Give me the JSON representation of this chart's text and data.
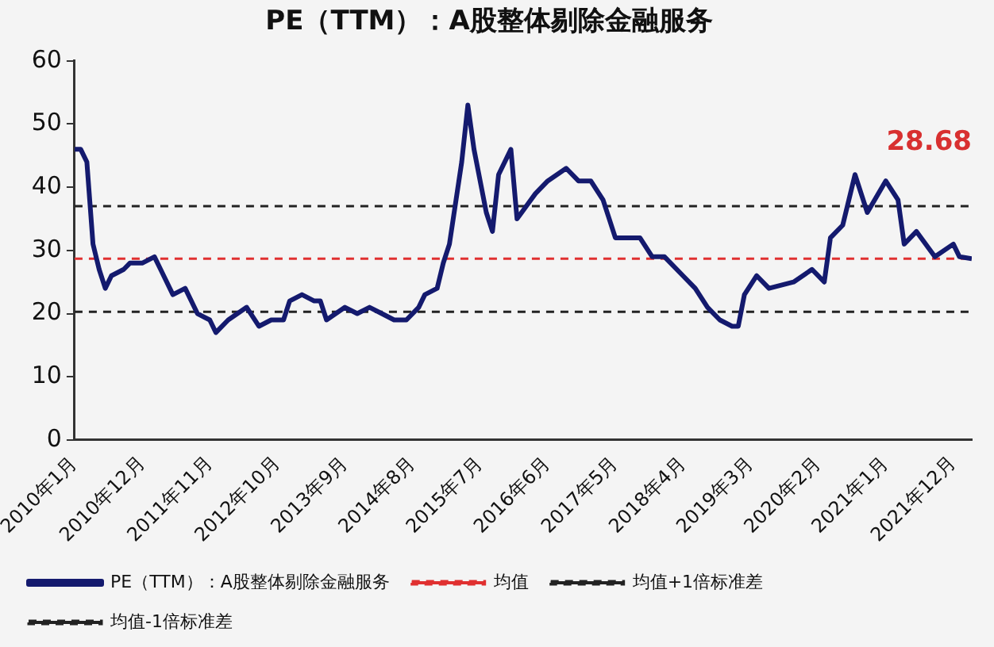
{
  "chart_data": {
    "type": "line",
    "title": "PE（TTM）：A股整体剔除金融服务",
    "x": [
      "2010-01",
      "2010-02",
      "2010-03",
      "2010-04",
      "2010-05",
      "2010-06",
      "2010-07",
      "2010-09",
      "2010-10",
      "2010-12",
      "2011-02",
      "2011-03",
      "2011-05",
      "2011-07",
      "2011-09",
      "2011-11",
      "2011-12",
      "2012-02",
      "2012-05",
      "2012-07",
      "2012-09",
      "2012-11",
      "2012-12",
      "2013-02",
      "2013-04",
      "2013-05",
      "2013-06",
      "2013-09",
      "2013-11",
      "2014-01",
      "2014-03",
      "2014-05",
      "2014-07",
      "2014-09",
      "2014-10",
      "2014-12",
      "2015-01",
      "2015-02",
      "2015-04",
      "2015-05",
      "2015-06",
      "2015-08",
      "2015-09",
      "2015-10",
      "2015-12",
      "2016-01",
      "2016-04",
      "2016-06",
      "2016-09",
      "2016-11",
      "2017-01",
      "2017-03",
      "2017-05",
      "2017-07",
      "2017-09",
      "2017-11",
      "2018-01",
      "2018-04",
      "2018-06",
      "2018-08",
      "2018-10",
      "2018-12",
      "2019-01",
      "2019-02",
      "2019-04",
      "2019-06",
      "2019-10",
      "2020-01",
      "2020-03",
      "2020-04",
      "2020-06",
      "2020-08",
      "2020-10",
      "2021-01",
      "2021-03",
      "2021-04",
      "2021-06",
      "2021-09",
      "2021-12",
      "2022-01",
      "2022-03"
    ],
    "series": [
      {
        "name": "PE（TTM）：A股整体剔除金融服务",
        "color": "#141a6e",
        "values": [
          46,
          46,
          44,
          31,
          27,
          24,
          26,
          27,
          28,
          28,
          29,
          27,
          23,
          24,
          20,
          19,
          17,
          19,
          21,
          18,
          19,
          19,
          22,
          23,
          22,
          22,
          19,
          21,
          20,
          21,
          20,
          19,
          19,
          21,
          23,
          24,
          28,
          31,
          44,
          53,
          46,
          36,
          33,
          42,
          46,
          35,
          39,
          41,
          43,
          41,
          41,
          38,
          32,
          32,
          32,
          29,
          29,
          26,
          24,
          21,
          19,
          18,
          18,
          23,
          26,
          24,
          25,
          27,
          25,
          32,
          34,
          42,
          36,
          41,
          38,
          31,
          33,
          29,
          31,
          29,
          28.7
        ]
      }
    ],
    "ref_lines": [
      {
        "axis": "y",
        "value": 28.7,
        "label": "均值",
        "color": "#e03030",
        "line_style": "dashed"
      },
      {
        "axis": "y",
        "value": 37,
        "label": "均值+1倍标准差",
        "color": "#222222",
        "line_style": "dashed"
      },
      {
        "axis": "y",
        "value": 20.3,
        "label": "均值-1倍标准差",
        "color": "#222222",
        "line_style": "dashed"
      }
    ],
    "annotations": [
      "28.68"
    ],
    "xlim": [
      "2010-01",
      "2022-03"
    ],
    "xticks": [
      {
        "value": "2010-01",
        "label": "2010年1月"
      },
      {
        "value": "2010-12",
        "label": "2010年12月"
      },
      {
        "value": "2011-11",
        "label": "2011年11月"
      },
      {
        "value": "2012-10",
        "label": "2012年10月"
      },
      {
        "value": "2013-09",
        "label": "2013年9月"
      },
      {
        "value": "2014-08",
        "label": "2014年8月"
      },
      {
        "value": "2015-07",
        "label": "2015年7月"
      },
      {
        "value": "2016-06",
        "label": "2016年6月"
      },
      {
        "value": "2017-05",
        "label": "2017年5月"
      },
      {
        "value": "2018-04",
        "label": "2018年4月"
      },
      {
        "value": "2019-03",
        "label": "2019年3月"
      },
      {
        "value": "2020-02",
        "label": "2020年2月"
      },
      {
        "value": "2021-01",
        "label": "2021年1月"
      },
      {
        "value": "2021-12",
        "label": "2021年12月"
      }
    ],
    "ylim": [
      0,
      60
    ],
    "yticks": [
      0,
      10,
      20,
      30,
      40,
      50,
      60
    ],
    "grid": false,
    "legend": "bottom",
    "marker": "none",
    "line_style": "solid"
  }
}
